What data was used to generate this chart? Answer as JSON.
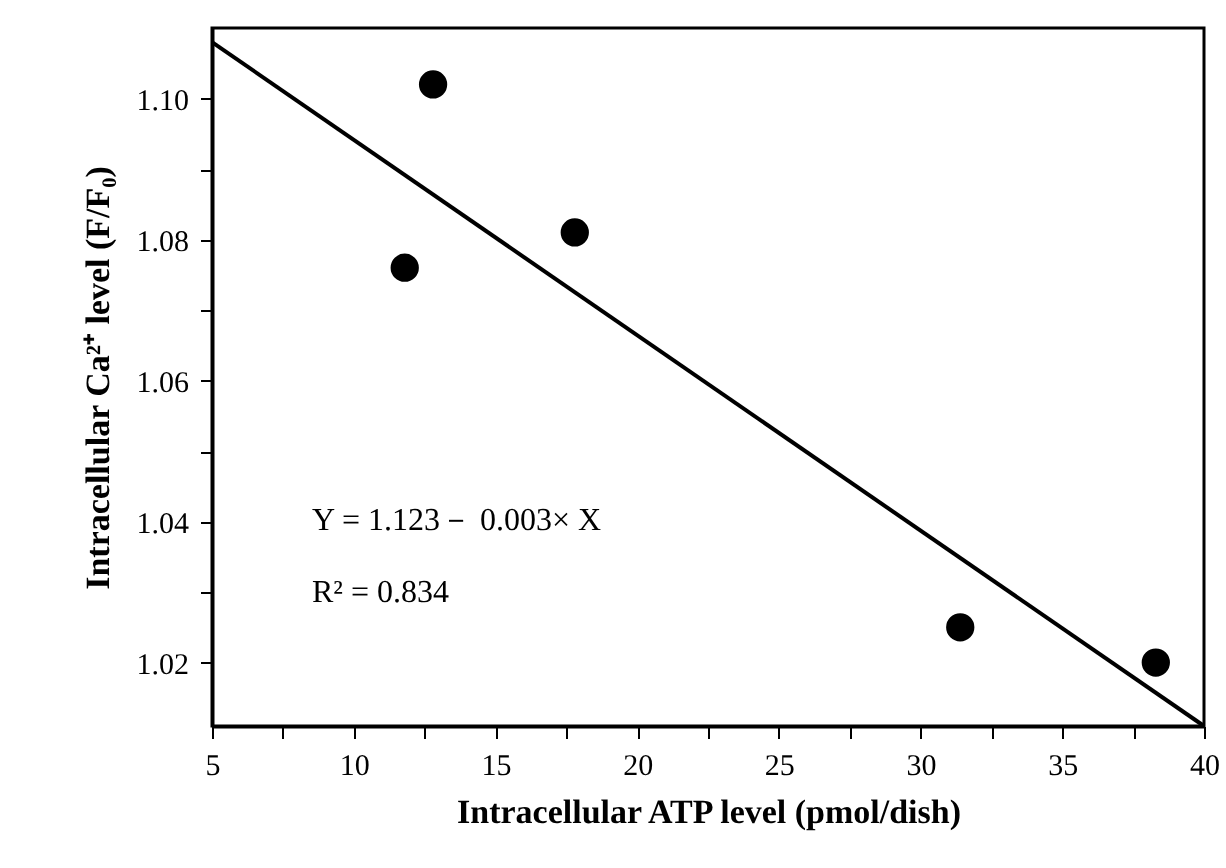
{
  "chart_data": {
    "type": "scatter",
    "xlabel": "Intracellular ATP level (pmol/dish)",
    "ylabel": "Intracellular Ca²⁺ level (F/F₀)",
    "series": [
      {
        "marker": "circle",
        "color": "#000000",
        "x": [
          11.8,
          12.8,
          17.8,
          31.4,
          38.3
        ],
        "values": [
          1.076,
          1.102,
          1.081,
          1.025,
          1.02
        ]
      },
      {
        "type": "line",
        "marker": "none",
        "color": "#000000",
        "x": [
          5,
          40
        ],
        "values": [
          1.108,
          1.011
        ]
      }
    ],
    "grid": false,
    "xlim": [
      5,
      40
    ],
    "ylim": [
      1.011,
      1.11
    ],
    "xticks": [
      5,
      {
        "value": 7.5,
        "label": null
      },
      10,
      {
        "value": 12.5,
        "label": null
      },
      15,
      {
        "value": 17.5,
        "label": null
      },
      20,
      {
        "value": 22.5,
        "label": null
      },
      25,
      {
        "value": 27.5,
        "label": null
      },
      30,
      {
        "value": 32.5,
        "label": null
      },
      35,
      {
        "value": 37.5,
        "label": null
      },
      40
    ],
    "yticks": [
      {
        "value": 1.02,
        "label": "1.02"
      },
      {
        "value": 1.03,
        "label": null
      },
      {
        "value": 1.04,
        "label": "1.04"
      },
      {
        "value": 1.05,
        "label": null
      },
      {
        "value": 1.06,
        "label": "1.06"
      },
      {
        "value": 1.07,
        "label": null
      },
      {
        "value": 1.08,
        "label": "1.08"
      },
      {
        "value": 1.09,
        "label": null
      },
      {
        "value": 1.1,
        "label": "1.10"
      }
    ],
    "annotations": [
      "Y = 1.123－ 0.003× X",
      "R² = 0.834"
    ]
  }
}
